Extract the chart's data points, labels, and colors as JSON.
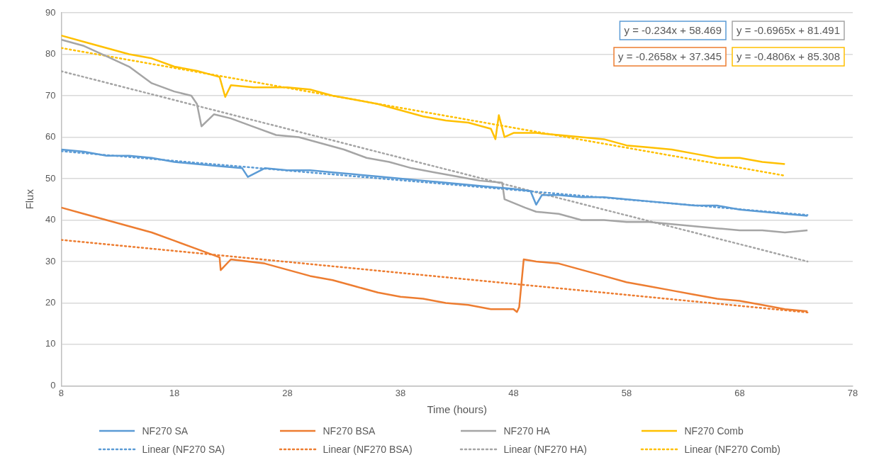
{
  "chart_data": {
    "type": "line",
    "xlabel": "Time (hours)",
    "ylabel": "Flux",
    "xlim": [
      8,
      78
    ],
    "xticks": [
      8,
      18,
      28,
      38,
      48,
      58,
      68,
      78
    ],
    "ylim": [
      0,
      90
    ],
    "yticks": [
      0,
      10,
      20,
      30,
      40,
      50,
      60,
      70,
      80,
      90
    ],
    "grid": "y",
    "legend": "bottom",
    "marker": "none",
    "annotations": [
      "y = -0.234x + 58.469",
      "y = -0.6965x + 81.491",
      "y = -0.2658x + 37.345",
      "y = -0.4806x + 85.308"
    ],
    "series": [
      {
        "name": "NF270 SA",
        "color": "#5b9bd5",
        "x": [
          8,
          10,
          12,
          14,
          16,
          18,
          20,
          22,
          24,
          24.5,
          26,
          28,
          30,
          32,
          34,
          36,
          38,
          40,
          42,
          44,
          46,
          48,
          49.5,
          50,
          50.5,
          52,
          54,
          56,
          58,
          60,
          62,
          64,
          66,
          68,
          70,
          72,
          74
        ],
        "values": [
          57,
          56.5,
          55.5,
          55.5,
          55,
          54,
          53.5,
          53,
          52.5,
          50.4,
          52.5,
          52,
          52,
          51.5,
          51,
          50.5,
          50,
          49.5,
          49,
          48.5,
          48,
          47.5,
          47,
          43.7,
          46,
          46,
          45.5,
          45.5,
          45,
          44.5,
          44,
          43.5,
          43.5,
          42.5,
          42,
          41.5,
          41
        ]
      },
      {
        "name": "NF270 BSA",
        "color": "#ed7d31",
        "x": [
          8,
          10,
          12,
          14,
          16,
          18,
          20,
          22,
          22.1,
          23,
          26,
          28,
          30,
          32,
          34,
          36,
          38,
          40,
          42,
          44,
          46,
          48,
          48.3,
          48.5,
          48.9,
          50,
          52,
          54,
          56,
          58,
          60,
          62,
          64,
          66,
          68,
          70,
          72,
          74
        ],
        "values": [
          43,
          41.5,
          40,
          38.5,
          37,
          35,
          33,
          31,
          27.9,
          30.5,
          29.5,
          28,
          26.5,
          25.5,
          24,
          22.5,
          21.5,
          21,
          20,
          19.5,
          18.5,
          18.5,
          17.8,
          19,
          30.5,
          30,
          29.5,
          28,
          26.5,
          25,
          24,
          23,
          22,
          21,
          20.5,
          19.5,
          18.5,
          18
        ]
      },
      {
        "name": "NF270 HA",
        "color": "#a5a5a5",
        "x": [
          8,
          10,
          12,
          14,
          16,
          18,
          19.5,
          20,
          20.4,
          21.5,
          23,
          25,
          27,
          29,
          31,
          33,
          35,
          37,
          39,
          41,
          43,
          45,
          47,
          47.2,
          49,
          50,
          52,
          54,
          56,
          58,
          60,
          62,
          64,
          66,
          68,
          70,
          72,
          74
        ],
        "values": [
          83.5,
          82,
          79.5,
          77,
          73,
          71,
          70,
          68,
          62.6,
          65.5,
          64.5,
          62.5,
          60.5,
          60,
          58.5,
          57,
          55,
          54,
          52.5,
          51.5,
          50.5,
          49.5,
          49,
          45,
          43,
          42,
          41.5,
          40,
          40,
          39.5,
          39.5,
          39,
          38.5,
          38,
          37.5,
          37.5,
          37,
          37.5
        ]
      },
      {
        "name": "NF270 Comb",
        "color": "#ffc000",
        "x": [
          8,
          10,
          12,
          14,
          16,
          18,
          20,
          22,
          22.5,
          23,
          25,
          28,
          30,
          32,
          34,
          36,
          38,
          40,
          42,
          44,
          46,
          46.4,
          46.7,
          47.2,
          48,
          50,
          52,
          54,
          56,
          58,
          60,
          62,
          64,
          66,
          68,
          70,
          72
        ],
        "values": [
          84.5,
          83,
          81.5,
          80,
          79,
          77,
          76,
          74.5,
          69.7,
          72.5,
          72,
          72,
          71.5,
          70,
          69,
          68,
          66.5,
          65,
          64,
          63.5,
          62,
          59.5,
          65.3,
          60,
          61,
          61,
          60.5,
          60,
          59.5,
          58,
          57.5,
          57,
          56,
          55,
          55,
          54,
          53.5
        ]
      },
      {
        "name": "Linear (NF270 SA)",
        "color": "#5b9bd5",
        "line_style": "dotted",
        "x": [
          8,
          74
        ],
        "values": [
          56.6,
          41.2
        ]
      },
      {
        "name": "Linear (NF270 BSA)",
        "color": "#ed7d31",
        "line_style": "dotted",
        "x": [
          8,
          74
        ],
        "values": [
          35.2,
          17.7
        ]
      },
      {
        "name": "Linear (NF270 HA)",
        "color": "#a5a5a5",
        "line_style": "dotted",
        "x": [
          8,
          74
        ],
        "values": [
          75.9,
          30
        ]
      },
      {
        "name": "Linear (NF270 Comb)",
        "color": "#ffc000",
        "line_style": "dotted",
        "x": [
          8,
          72
        ],
        "values": [
          81.5,
          50.7
        ]
      }
    ]
  }
}
